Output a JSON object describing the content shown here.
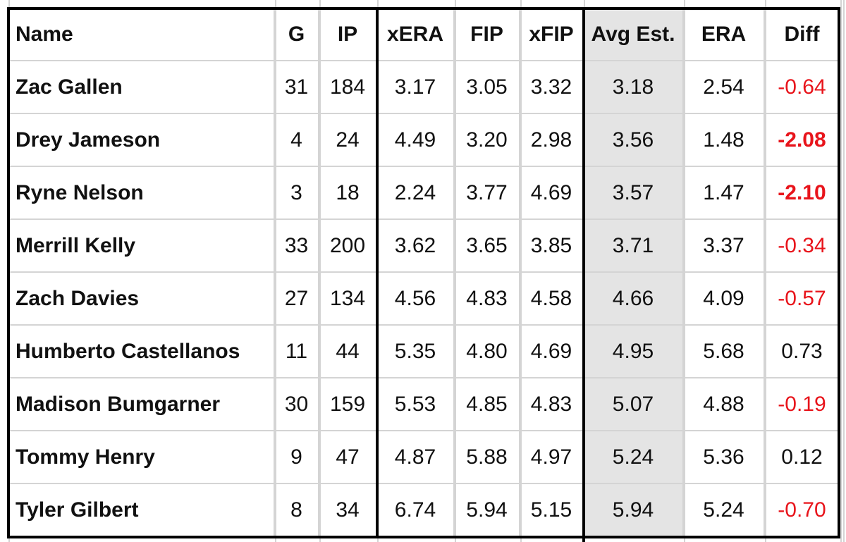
{
  "table": {
    "header": [
      "Name",
      "G",
      "IP",
      "xERA",
      "FIP",
      "xFIP",
      "Avg Est.",
      "ERA",
      "Diff"
    ],
    "rows": [
      [
        "Zac Gallen",
        "31",
        "184",
        "3.17",
        "3.05",
        "3.32",
        "3.18",
        "2.54",
        "-0.64"
      ],
      [
        "Drey Jameson",
        "4",
        "24",
        "4.49",
        "3.20",
        "2.98",
        "3.56",
        "1.48",
        "-2.08"
      ],
      [
        "Ryne Nelson",
        "3",
        "18",
        "2.24",
        "3.77",
        "4.69",
        "3.57",
        "1.47",
        "-2.10"
      ],
      [
        "Merrill Kelly",
        "33",
        "200",
        "3.62",
        "3.65",
        "3.85",
        "3.71",
        "3.37",
        "-0.34"
      ],
      [
        "Zach Davies",
        "27",
        "134",
        "4.56",
        "4.83",
        "4.58",
        "4.66",
        "4.09",
        "-0.57"
      ],
      [
        "Humberto Castellanos",
        "11",
        "44",
        "5.35",
        "4.80",
        "4.69",
        "4.95",
        "5.68",
        "0.73"
      ],
      [
        "Madison Bumgarner",
        "30",
        "159",
        "5.53",
        "4.85",
        "4.83",
        "5.07",
        "4.88",
        "-0.19"
      ],
      [
        "Tommy Henry",
        "9",
        "47",
        "4.87",
        "5.88",
        "4.97",
        "5.24",
        "5.36",
        "0.12"
      ],
      [
        "Tyler Gilbert",
        "8",
        "34",
        "6.74",
        "5.94",
        "5.15",
        "5.94",
        "5.24",
        "-0.70"
      ]
    ]
  }
}
